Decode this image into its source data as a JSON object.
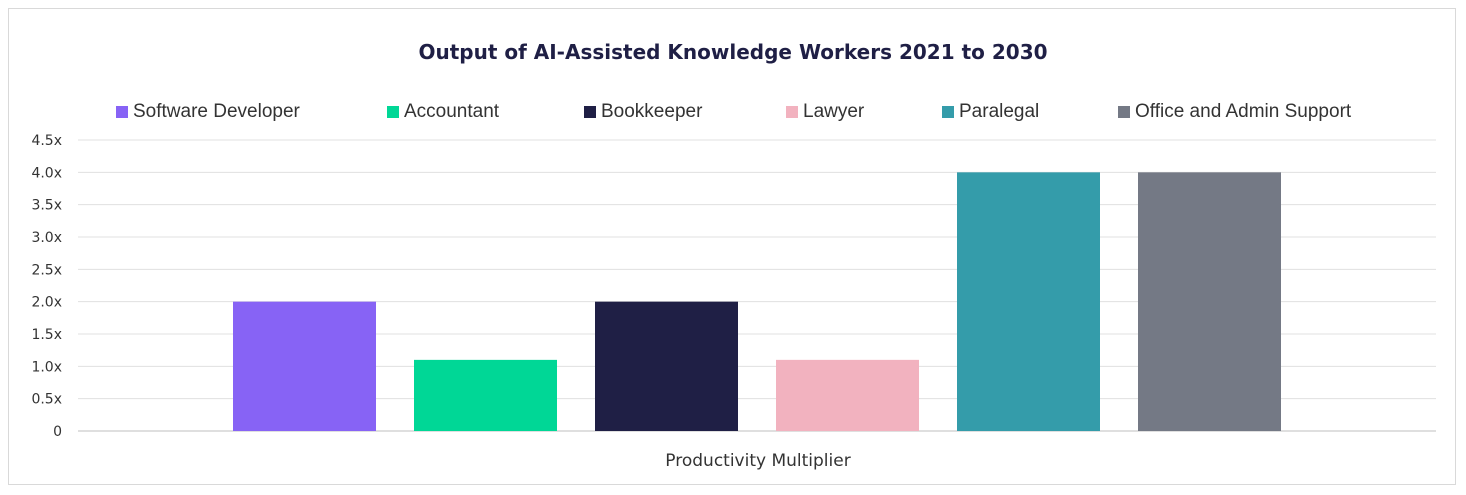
{
  "chart_data": {
    "type": "bar",
    "title": "Output of AI-Assisted Knowledge Workers 2021 to 2030",
    "xlabel": "Productivity Multiplier",
    "ylabel": "",
    "ylim": [
      0,
      4.5
    ],
    "yticks": [
      "0",
      "0.5x",
      "1.0x",
      "1.5x",
      "2.0x",
      "2.5x",
      "3.0x",
      "3.5x",
      "4.0x",
      "4.5x"
    ],
    "grid": true,
    "legend_position": "top",
    "categories": [
      "Productivity Multiplier"
    ],
    "series": [
      {
        "name": "Software Developer",
        "values": [
          2.0
        ],
        "color": "#8763f5"
      },
      {
        "name": "Accountant",
        "values": [
          1.1
        ],
        "color": "#00d796"
      },
      {
        "name": "Bookkeeper",
        "values": [
          2.0
        ],
        "color": "#1f1f45"
      },
      {
        "name": "Lawyer",
        "values": [
          1.1
        ],
        "color": "#f2b2bf"
      },
      {
        "name": "Paralegal",
        "values": [
          4.0
        ],
        "color": "#349caa"
      },
      {
        "name": "Office and Admin Support",
        "values": [
          4.0
        ],
        "color": "#747985"
      }
    ]
  }
}
